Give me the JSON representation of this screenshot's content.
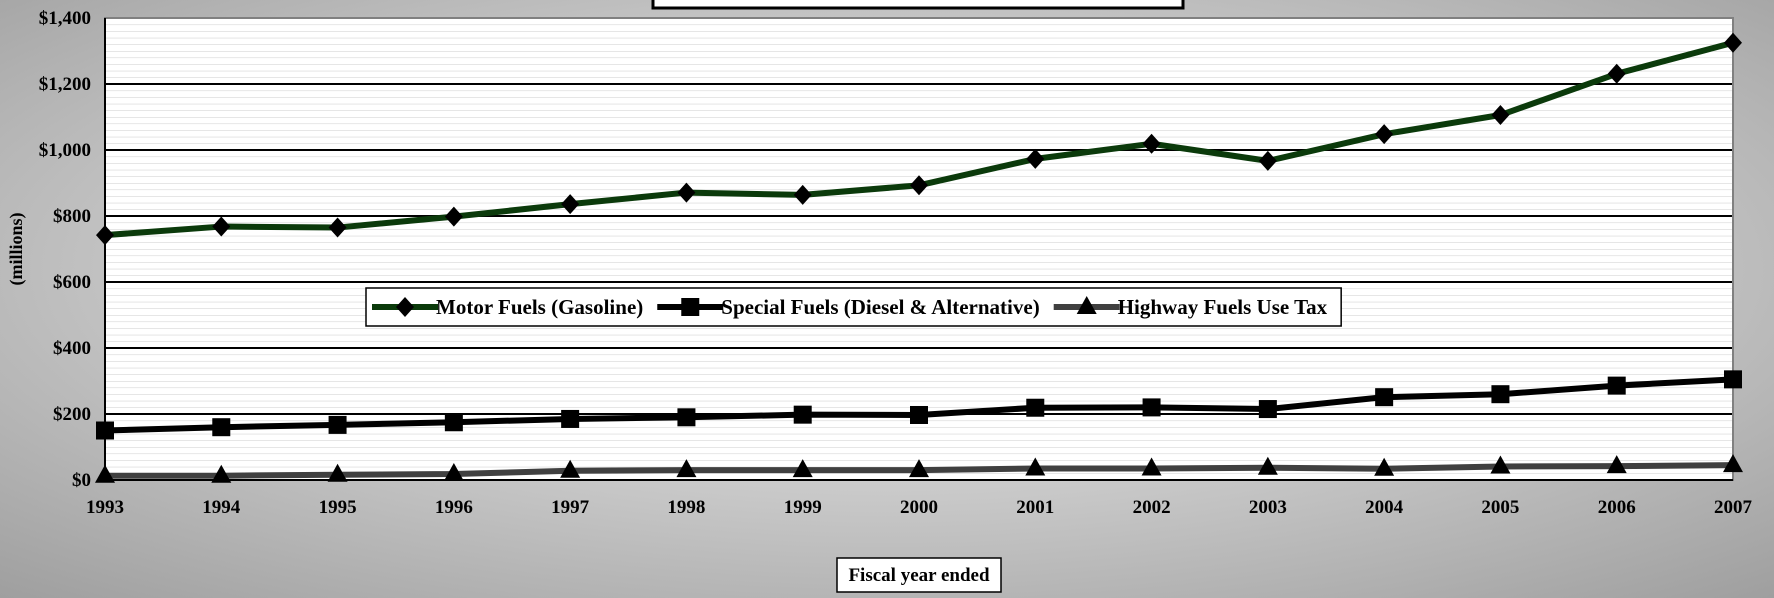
{
  "chart_data": {
    "type": "line",
    "ylabel": "(millions)",
    "xlabel": "Fiscal year ended",
    "categories": [
      "1993",
      "1994",
      "1995",
      "1996",
      "1997",
      "1998",
      "1999",
      "2000",
      "2001",
      "2002",
      "2003",
      "2004",
      "2005",
      "2006",
      "2007"
    ],
    "series": [
      {
        "name": "Motor Fuels (Gasoline)",
        "color": "#0b3a0b",
        "marker": "diamond",
        "values": [
          742,
          768,
          765,
          798,
          836,
          871,
          864,
          893,
          973,
          1019,
          967,
          1048,
          1106,
          1231,
          1325
        ]
      },
      {
        "name": "Special Fuels (Diesel & Alternative)",
        "color": "#000000",
        "marker": "square",
        "values": [
          150,
          160,
          167,
          175,
          185,
          190,
          198,
          197,
          219,
          220,
          215,
          251,
          260,
          286,
          305
        ]
      },
      {
        "name": "Highway Fuels Use Tax",
        "color": "#404040",
        "marker": "triangle",
        "values": [
          13,
          13,
          16,
          18,
          28,
          30,
          30,
          30,
          35,
          35,
          37,
          34,
          41,
          42,
          45
        ]
      }
    ],
    "ylim": [
      0,
      1400
    ],
    "yticks": [
      {
        "value": 0,
        "label": "$0"
      },
      {
        "value": 200,
        "label": "$200"
      },
      {
        "value": 400,
        "label": "$400"
      },
      {
        "value": 600,
        "label": "$600"
      },
      {
        "value": 800,
        "label": "$800"
      },
      {
        "value": 1000,
        "label": "$1,000"
      },
      {
        "value": 1200,
        "label": "$1,200"
      },
      {
        "value": 1400,
        "label": "$1,400"
      }
    ],
    "grid": true,
    "legend": "center"
  }
}
